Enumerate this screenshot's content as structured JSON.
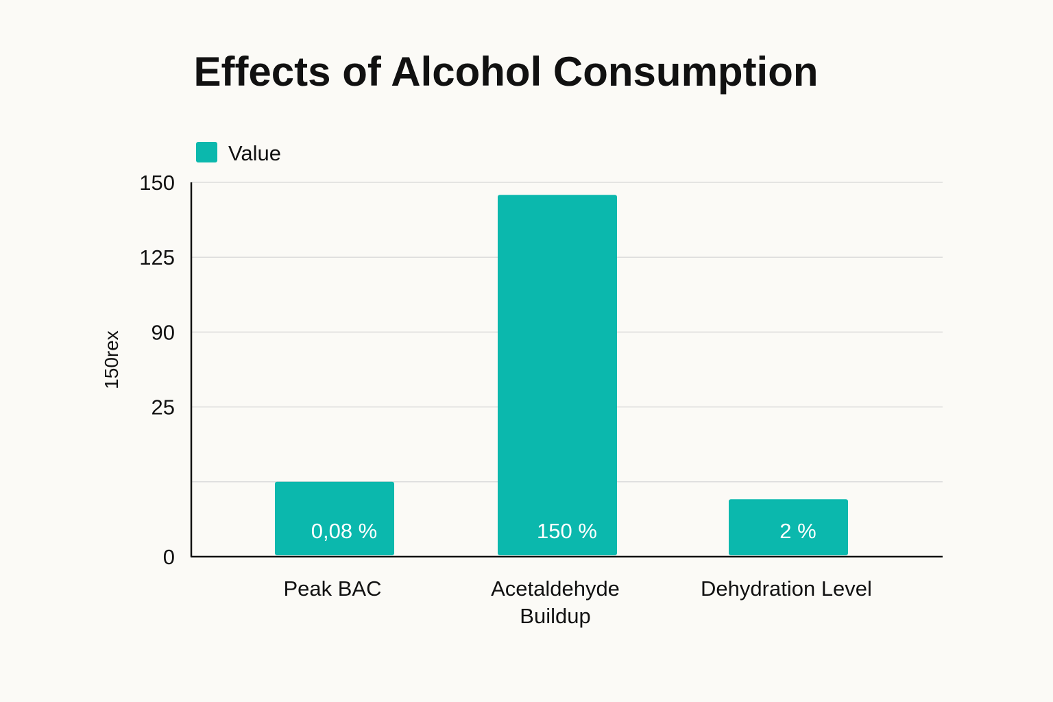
{
  "chart_data": {
    "type": "bar",
    "title": "Effects of Alcohol Consumption",
    "ylabel": "150rex",
    "xlabel": "",
    "legend": {
      "position": "top-left",
      "entries": [
        "Value"
      ]
    },
    "categories": [
      "Peak BAC",
      "Acetaldehyde Buildup",
      "Dehydration Level"
    ],
    "category_lines": [
      [
        "Peak BAC"
      ],
      [
        "Acetaldehyde",
        "Buildup"
      ],
      [
        "Dehydration Level"
      ]
    ],
    "series": [
      {
        "name": "Value",
        "values": [
          30,
          145,
          23
        ],
        "color": "#0bb8ad"
      }
    ],
    "data_labels": [
      "0,08 %",
      "150 %",
      "2 %"
    ],
    "yticks": [
      "0",
      "",
      "25",
      "90",
      "125",
      "150"
    ],
    "ylim": [
      0,
      150
    ],
    "grid": true
  }
}
